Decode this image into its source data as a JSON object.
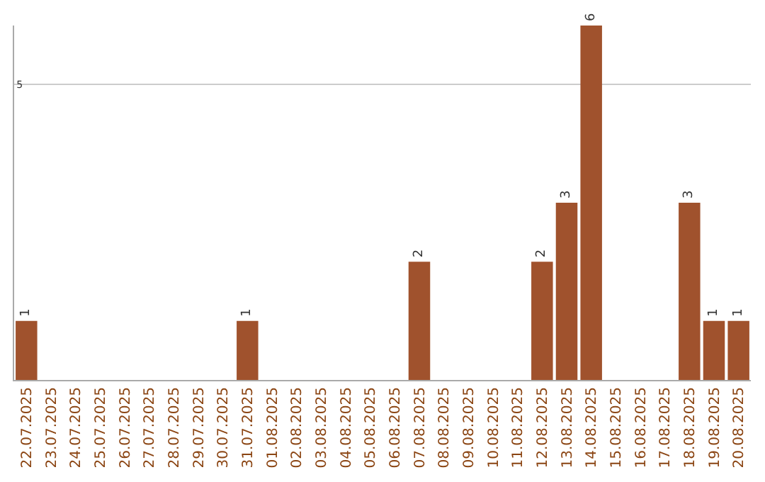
{
  "chart_data": {
    "type": "bar",
    "categories": [
      "22.07.2025",
      "23.07.2025",
      "24.07.2025",
      "25.07.2025",
      "26.07.2025",
      "27.07.2025",
      "28.07.2025",
      "29.07.2025",
      "30.07.2025",
      "31.07.2025",
      "01.08.2025",
      "02.08.2025",
      "03.08.2025",
      "04.08.2025",
      "05.08.2025",
      "06.08.2025",
      "07.08.2025",
      "08.08.2025",
      "09.08.2025",
      "10.08.2025",
      "11.08.2025",
      "12.08.2025",
      "13.08.2025",
      "14.08.2025",
      "15.08.2025",
      "16.08.2025",
      "17.08.2025",
      "18.08.2025",
      "19.08.2025",
      "20.08.2025"
    ],
    "values": [
      1,
      0,
      0,
      0,
      0,
      0,
      0,
      0,
      0,
      1,
      0,
      0,
      0,
      0,
      0,
      0,
      2,
      0,
      0,
      0,
      0,
      2,
      3,
      6,
      0,
      0,
      0,
      3,
      1,
      1
    ],
    "value_labels": [
      "1",
      null,
      null,
      null,
      null,
      null,
      null,
      null,
      null,
      "1",
      null,
      null,
      null,
      null,
      null,
      null,
      "2",
      null,
      null,
      null,
      null,
      "2",
      "3",
      "6",
      null,
      null,
      null,
      "3",
      "1",
      "1"
    ],
    "color": "#a0522d",
    "ylim": [
      0,
      6
    ],
    "yticks": [
      5
    ],
    "grid": "y",
    "legend": false
  }
}
